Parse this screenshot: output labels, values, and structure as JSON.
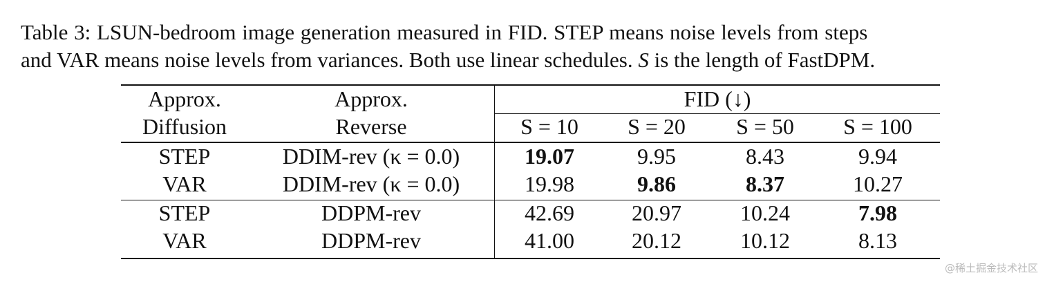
{
  "caption": {
    "line1": "Table 3: LSUN-bedroom image generation measured in FID. STEP means noise levels from steps",
    "line2": [
      "and VAR means noise levels from variances. Both use linear schedules. ",
      "S",
      " is the length of FastDPM."
    ]
  },
  "table": {
    "header_top": [
      "Approx.",
      "Approx.",
      "FID (↓)"
    ],
    "header_bottom": [
      "Diffusion",
      "Reverse",
      "S = 10",
      "S = 20",
      "S = 50",
      "S = 100"
    ],
    "rows": [
      [
        "STEP",
        "DDIM-rev (κ = 0.0)",
        "19.07",
        "9.95",
        "8.43",
        "9.94"
      ],
      [
        "VAR",
        "DDIM-rev (κ = 0.0)",
        "19.98",
        "9.86",
        "8.37",
        "10.27"
      ],
      [
        "STEP",
        "DDPM-rev",
        "42.69",
        "20.97",
        "10.24",
        "7.98"
      ],
      [
        "VAR",
        "DDPM-rev",
        "41.00",
        "20.12",
        "10.12",
        "8.13"
      ]
    ],
    "bold": [
      [
        0,
        2
      ],
      [
        1,
        3
      ],
      [
        1,
        4
      ],
      [
        2,
        5
      ]
    ]
  },
  "watermark": "@稀土掘金技术社区"
}
